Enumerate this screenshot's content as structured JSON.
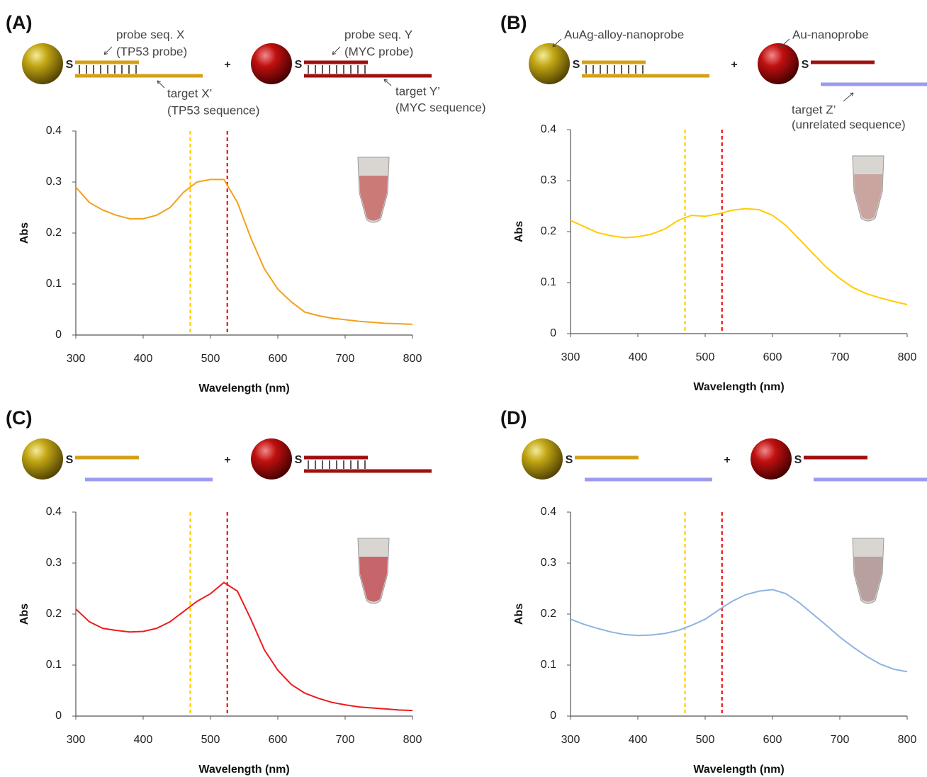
{
  "chart_data": [
    {
      "type": "line",
      "panel_label": "(A)",
      "linker_label": "S",
      "plus": "+",
      "annotations": [
        "probe seq. X",
        "(TP53 probe)",
        "target X’",
        "(TP53 sequence)",
        "probe seq. Y",
        "(MYC probe)",
        "target Y’",
        "(MYC sequence)"
      ],
      "xlabel": "Wavelength (nm)",
      "ylabel": "Abs",
      "x": [
        300,
        320,
        340,
        360,
        380,
        400,
        420,
        440,
        460,
        480,
        500,
        520,
        540,
        560,
        580,
        600,
        620,
        640,
        660,
        680,
        700,
        720,
        740,
        760,
        780,
        800
      ],
      "series": [
        {
          "color": "#f5a01a",
          "values": [
            0.29,
            0.26,
            0.245,
            0.235,
            0.228,
            0.228,
            0.235,
            0.25,
            0.28,
            0.3,
            0.305,
            0.305,
            0.26,
            0.19,
            0.13,
            0.09,
            0.065,
            0.045,
            0.038,
            0.033,
            0.03,
            0.027,
            0.025,
            0.023,
            0.022,
            0.021
          ]
        }
      ],
      "reference_lines": [
        {
          "x": 470,
          "color": "#ffcc00"
        },
        {
          "x": 525,
          "color": "#ee1111"
        }
      ],
      "tube_color": "#c9716d",
      "xlim": [
        300,
        800
      ],
      "ylim": [
        0,
        0.4
      ],
      "xticks": [
        300,
        400,
        500,
        600,
        700,
        800
      ],
      "yticks": [
        0,
        0.1,
        0.2,
        0.3,
        0.4
      ]
    },
    {
      "type": "line",
      "panel_label": "(B)",
      "linker_label": "S",
      "plus": "+",
      "annotations": [
        "AuAg-alloy-nanoprobe",
        "Au-nanoprobe",
        "target Z’",
        "(unrelated sequence)"
      ],
      "xlabel": "Wavelength (nm)",
      "ylabel": "Abs",
      "x": [
        300,
        320,
        340,
        360,
        380,
        400,
        420,
        440,
        460,
        480,
        500,
        520,
        540,
        560,
        580,
        600,
        620,
        640,
        660,
        680,
        700,
        720,
        740,
        760,
        780,
        800
      ],
      "series": [
        {
          "color": "#ffcc00",
          "values": [
            0.222,
            0.21,
            0.198,
            0.192,
            0.188,
            0.19,
            0.195,
            0.205,
            0.222,
            0.232,
            0.23,
            0.235,
            0.242,
            0.245,
            0.243,
            0.232,
            0.212,
            0.185,
            0.157,
            0.13,
            0.108,
            0.09,
            0.078,
            0.07,
            0.063,
            0.057
          ]
        }
      ],
      "reference_lines": [
        {
          "x": 470,
          "color": "#ffcc00"
        },
        {
          "x": 525,
          "color": "#ee1111"
        }
      ],
      "tube_color": "#c8a09a",
      "xlim": [
        300,
        800
      ],
      "ylim": [
        0,
        0.4
      ],
      "xticks": [
        300,
        400,
        500,
        600,
        700,
        800
      ],
      "yticks": [
        0,
        0.1,
        0.2,
        0.3,
        0.4
      ]
    },
    {
      "type": "line",
      "panel_label": "(C)",
      "linker_label": "S",
      "plus": "+",
      "annotations": [],
      "xlabel": "Wavelength (nm)",
      "ylabel": "Abs",
      "x": [
        300,
        320,
        340,
        360,
        380,
        400,
        420,
        440,
        460,
        480,
        500,
        520,
        540,
        560,
        580,
        600,
        620,
        640,
        660,
        680,
        700,
        720,
        740,
        760,
        780,
        800
      ],
      "series": [
        {
          "color": "#ee1c1c",
          "values": [
            0.21,
            0.185,
            0.172,
            0.168,
            0.165,
            0.166,
            0.172,
            0.185,
            0.205,
            0.225,
            0.24,
            0.262,
            0.245,
            0.19,
            0.13,
            0.09,
            0.062,
            0.045,
            0.035,
            0.027,
            0.022,
            0.018,
            0.016,
            0.014,
            0.012,
            0.011
          ]
        }
      ],
      "reference_lines": [
        {
          "x": 470,
          "color": "#ffcc00"
        },
        {
          "x": 525,
          "color": "#ee1111"
        }
      ],
      "tube_color": "#c45a5e",
      "xlim": [
        300,
        800
      ],
      "ylim": [
        0,
        0.4
      ],
      "xticks": [
        300,
        400,
        500,
        600,
        700,
        800
      ],
      "yticks": [
        0,
        0.1,
        0.2,
        0.3,
        0.4
      ]
    },
    {
      "type": "line",
      "panel_label": "(D)",
      "linker_label": "S",
      "plus": "+",
      "annotations": [],
      "xlabel": "Wavelength (nm)",
      "ylabel": "Abs",
      "x": [
        300,
        320,
        340,
        360,
        380,
        400,
        420,
        440,
        460,
        480,
        500,
        520,
        540,
        560,
        580,
        600,
        620,
        640,
        660,
        680,
        700,
        720,
        740,
        760,
        780,
        800
      ],
      "series": [
        {
          "color": "#8db4e2",
          "values": [
            0.19,
            0.18,
            0.172,
            0.165,
            0.16,
            0.158,
            0.159,
            0.162,
            0.168,
            0.178,
            0.19,
            0.208,
            0.225,
            0.238,
            0.245,
            0.248,
            0.24,
            0.222,
            0.2,
            0.178,
            0.155,
            0.135,
            0.117,
            0.102,
            0.092,
            0.087
          ]
        }
      ],
      "reference_lines": [
        {
          "x": 470,
          "color": "#ffcc00"
        },
        {
          "x": 525,
          "color": "#ee1111"
        }
      ],
      "tube_color": "#b39a98",
      "xlim": [
        300,
        800
      ],
      "ylim": [
        0,
        0.4
      ],
      "xticks": [
        300,
        400,
        500,
        600,
        700,
        800
      ],
      "yticks": [
        0,
        0.1,
        0.2,
        0.3,
        0.4
      ]
    }
  ]
}
